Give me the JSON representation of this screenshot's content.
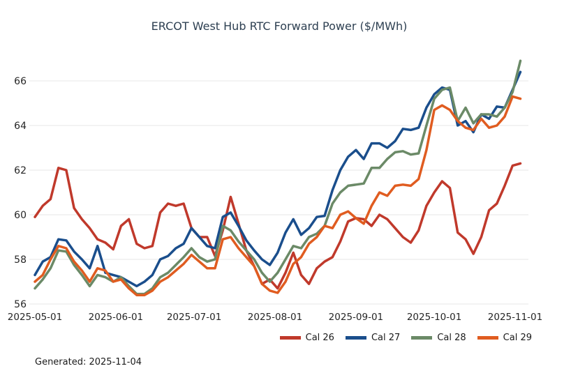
{
  "footer": {
    "generated": "Generated: 2025-11-04"
  },
  "chart_data": {
    "type": "line",
    "title": "ERCOT West Hub RTC Forward Power ($/MWh)",
    "xlabel": "",
    "ylabel": "",
    "grid": "horizontal-only",
    "legend_position": "bottom-right",
    "ylim": [
      55.7,
      67.3
    ],
    "yticks": [
      56,
      58,
      60,
      62,
      64,
      66
    ],
    "xticks": [
      "2025-05-01",
      "2025-06-01",
      "2025-07-01",
      "2025-08-01",
      "2025-09-01",
      "2025-10-01",
      "2025-11-01"
    ],
    "x": [
      "2025-05-01",
      "2025-05-04",
      "2025-05-07",
      "2025-05-10",
      "2025-05-13",
      "2025-05-16",
      "2025-05-19",
      "2025-05-22",
      "2025-05-25",
      "2025-05-28",
      "2025-05-31",
      "2025-06-03",
      "2025-06-06",
      "2025-06-09",
      "2025-06-12",
      "2025-06-15",
      "2025-06-18",
      "2025-06-21",
      "2025-06-24",
      "2025-06-27",
      "2025-06-30",
      "2025-07-03",
      "2025-07-06",
      "2025-07-09",
      "2025-07-12",
      "2025-07-15",
      "2025-07-18",
      "2025-07-21",
      "2025-07-24",
      "2025-07-27",
      "2025-07-30",
      "2025-08-02",
      "2025-08-05",
      "2025-08-08",
      "2025-08-11",
      "2025-08-14",
      "2025-08-17",
      "2025-08-20",
      "2025-08-23",
      "2025-08-26",
      "2025-08-29",
      "2025-09-01",
      "2025-09-04",
      "2025-09-07",
      "2025-09-10",
      "2025-09-13",
      "2025-09-16",
      "2025-09-19",
      "2025-09-22",
      "2025-09-25",
      "2025-09-28",
      "2025-10-01",
      "2025-10-04",
      "2025-10-07",
      "2025-10-10",
      "2025-10-13",
      "2025-10-16",
      "2025-10-19",
      "2025-10-22",
      "2025-10-25",
      "2025-10-28",
      "2025-10-31",
      "2025-11-03"
    ],
    "series": [
      {
        "name": "Cal 26",
        "color": "#c0392b",
        "values": [
          59.9,
          60.4,
          60.7,
          62.1,
          62.0,
          60.3,
          59.8,
          59.4,
          58.9,
          58.75,
          58.45,
          59.5,
          59.8,
          58.7,
          58.5,
          58.6,
          60.1,
          60.5,
          60.4,
          60.5,
          59.4,
          59.0,
          59.0,
          58.15,
          59.3,
          60.8,
          59.6,
          58.4,
          57.7,
          56.9,
          57.1,
          56.7,
          57.4,
          58.3,
          57.3,
          56.9,
          57.6,
          57.9,
          58.1,
          58.8,
          59.7,
          59.85,
          59.8,
          59.5,
          60.0,
          59.8,
          59.4,
          59.0,
          58.75,
          59.3,
          60.4,
          61.0,
          61.5,
          61.2,
          59.2,
          58.9,
          58.25,
          59.0,
          60.2,
          60.5,
          61.3,
          62.2,
          62.3
        ]
      },
      {
        "name": "Cal 27",
        "color": "#1a4e8c",
        "values": [
          57.3,
          57.9,
          58.1,
          58.9,
          58.85,
          58.35,
          58.0,
          57.6,
          58.6,
          57.4,
          57.3,
          57.2,
          57.0,
          56.8,
          57.0,
          57.3,
          58.0,
          58.15,
          58.5,
          58.7,
          59.4,
          59.0,
          58.6,
          58.5,
          59.9,
          60.1,
          59.5,
          58.85,
          58.4,
          58.0,
          57.75,
          58.3,
          59.2,
          59.8,
          59.1,
          59.4,
          59.9,
          59.95,
          61.1,
          62.0,
          62.6,
          62.9,
          62.5,
          63.2,
          63.2,
          63.0,
          63.3,
          63.85,
          63.8,
          63.9,
          64.8,
          65.4,
          65.7,
          65.6,
          64.0,
          64.2,
          63.7,
          64.5,
          64.3,
          64.85,
          64.8,
          65.6,
          66.4
        ]
      },
      {
        "name": "Cal 28",
        "color": "#6b8a67",
        "values": [
          56.7,
          57.1,
          57.6,
          58.4,
          58.35,
          57.75,
          57.3,
          56.8,
          57.3,
          57.2,
          57.0,
          57.2,
          56.8,
          56.45,
          56.45,
          56.7,
          57.2,
          57.4,
          57.75,
          58.1,
          58.5,
          58.1,
          57.9,
          58.0,
          59.5,
          59.3,
          58.8,
          58.4,
          58.0,
          57.4,
          57.0,
          57.4,
          58.0,
          58.6,
          58.5,
          59.0,
          59.15,
          59.5,
          60.5,
          61.0,
          61.3,
          61.35,
          61.4,
          62.1,
          62.1,
          62.5,
          62.8,
          62.85,
          62.7,
          62.75,
          64.0,
          65.2,
          65.6,
          65.7,
          64.2,
          64.8,
          64.1,
          64.5,
          64.5,
          64.4,
          64.8,
          65.5,
          66.9
        ]
      },
      {
        "name": "Cal 29",
        "color": "#e05c20",
        "values": [
          57.0,
          57.3,
          58.0,
          58.6,
          58.5,
          57.9,
          57.5,
          57.0,
          57.6,
          57.5,
          57.0,
          57.1,
          56.7,
          56.4,
          56.4,
          56.6,
          57.0,
          57.2,
          57.5,
          57.8,
          58.2,
          57.9,
          57.6,
          57.6,
          58.9,
          59.0,
          58.5,
          58.1,
          57.7,
          56.9,
          56.6,
          56.5,
          57.0,
          57.8,
          58.1,
          58.7,
          59.0,
          59.5,
          59.4,
          60.0,
          60.15,
          59.85,
          59.6,
          60.4,
          61.0,
          60.85,
          61.3,
          61.35,
          61.3,
          61.6,
          62.9,
          64.7,
          64.9,
          64.7,
          64.2,
          63.9,
          63.8,
          64.3,
          63.9,
          64.0,
          64.4,
          65.3,
          65.2
        ]
      }
    ]
  }
}
